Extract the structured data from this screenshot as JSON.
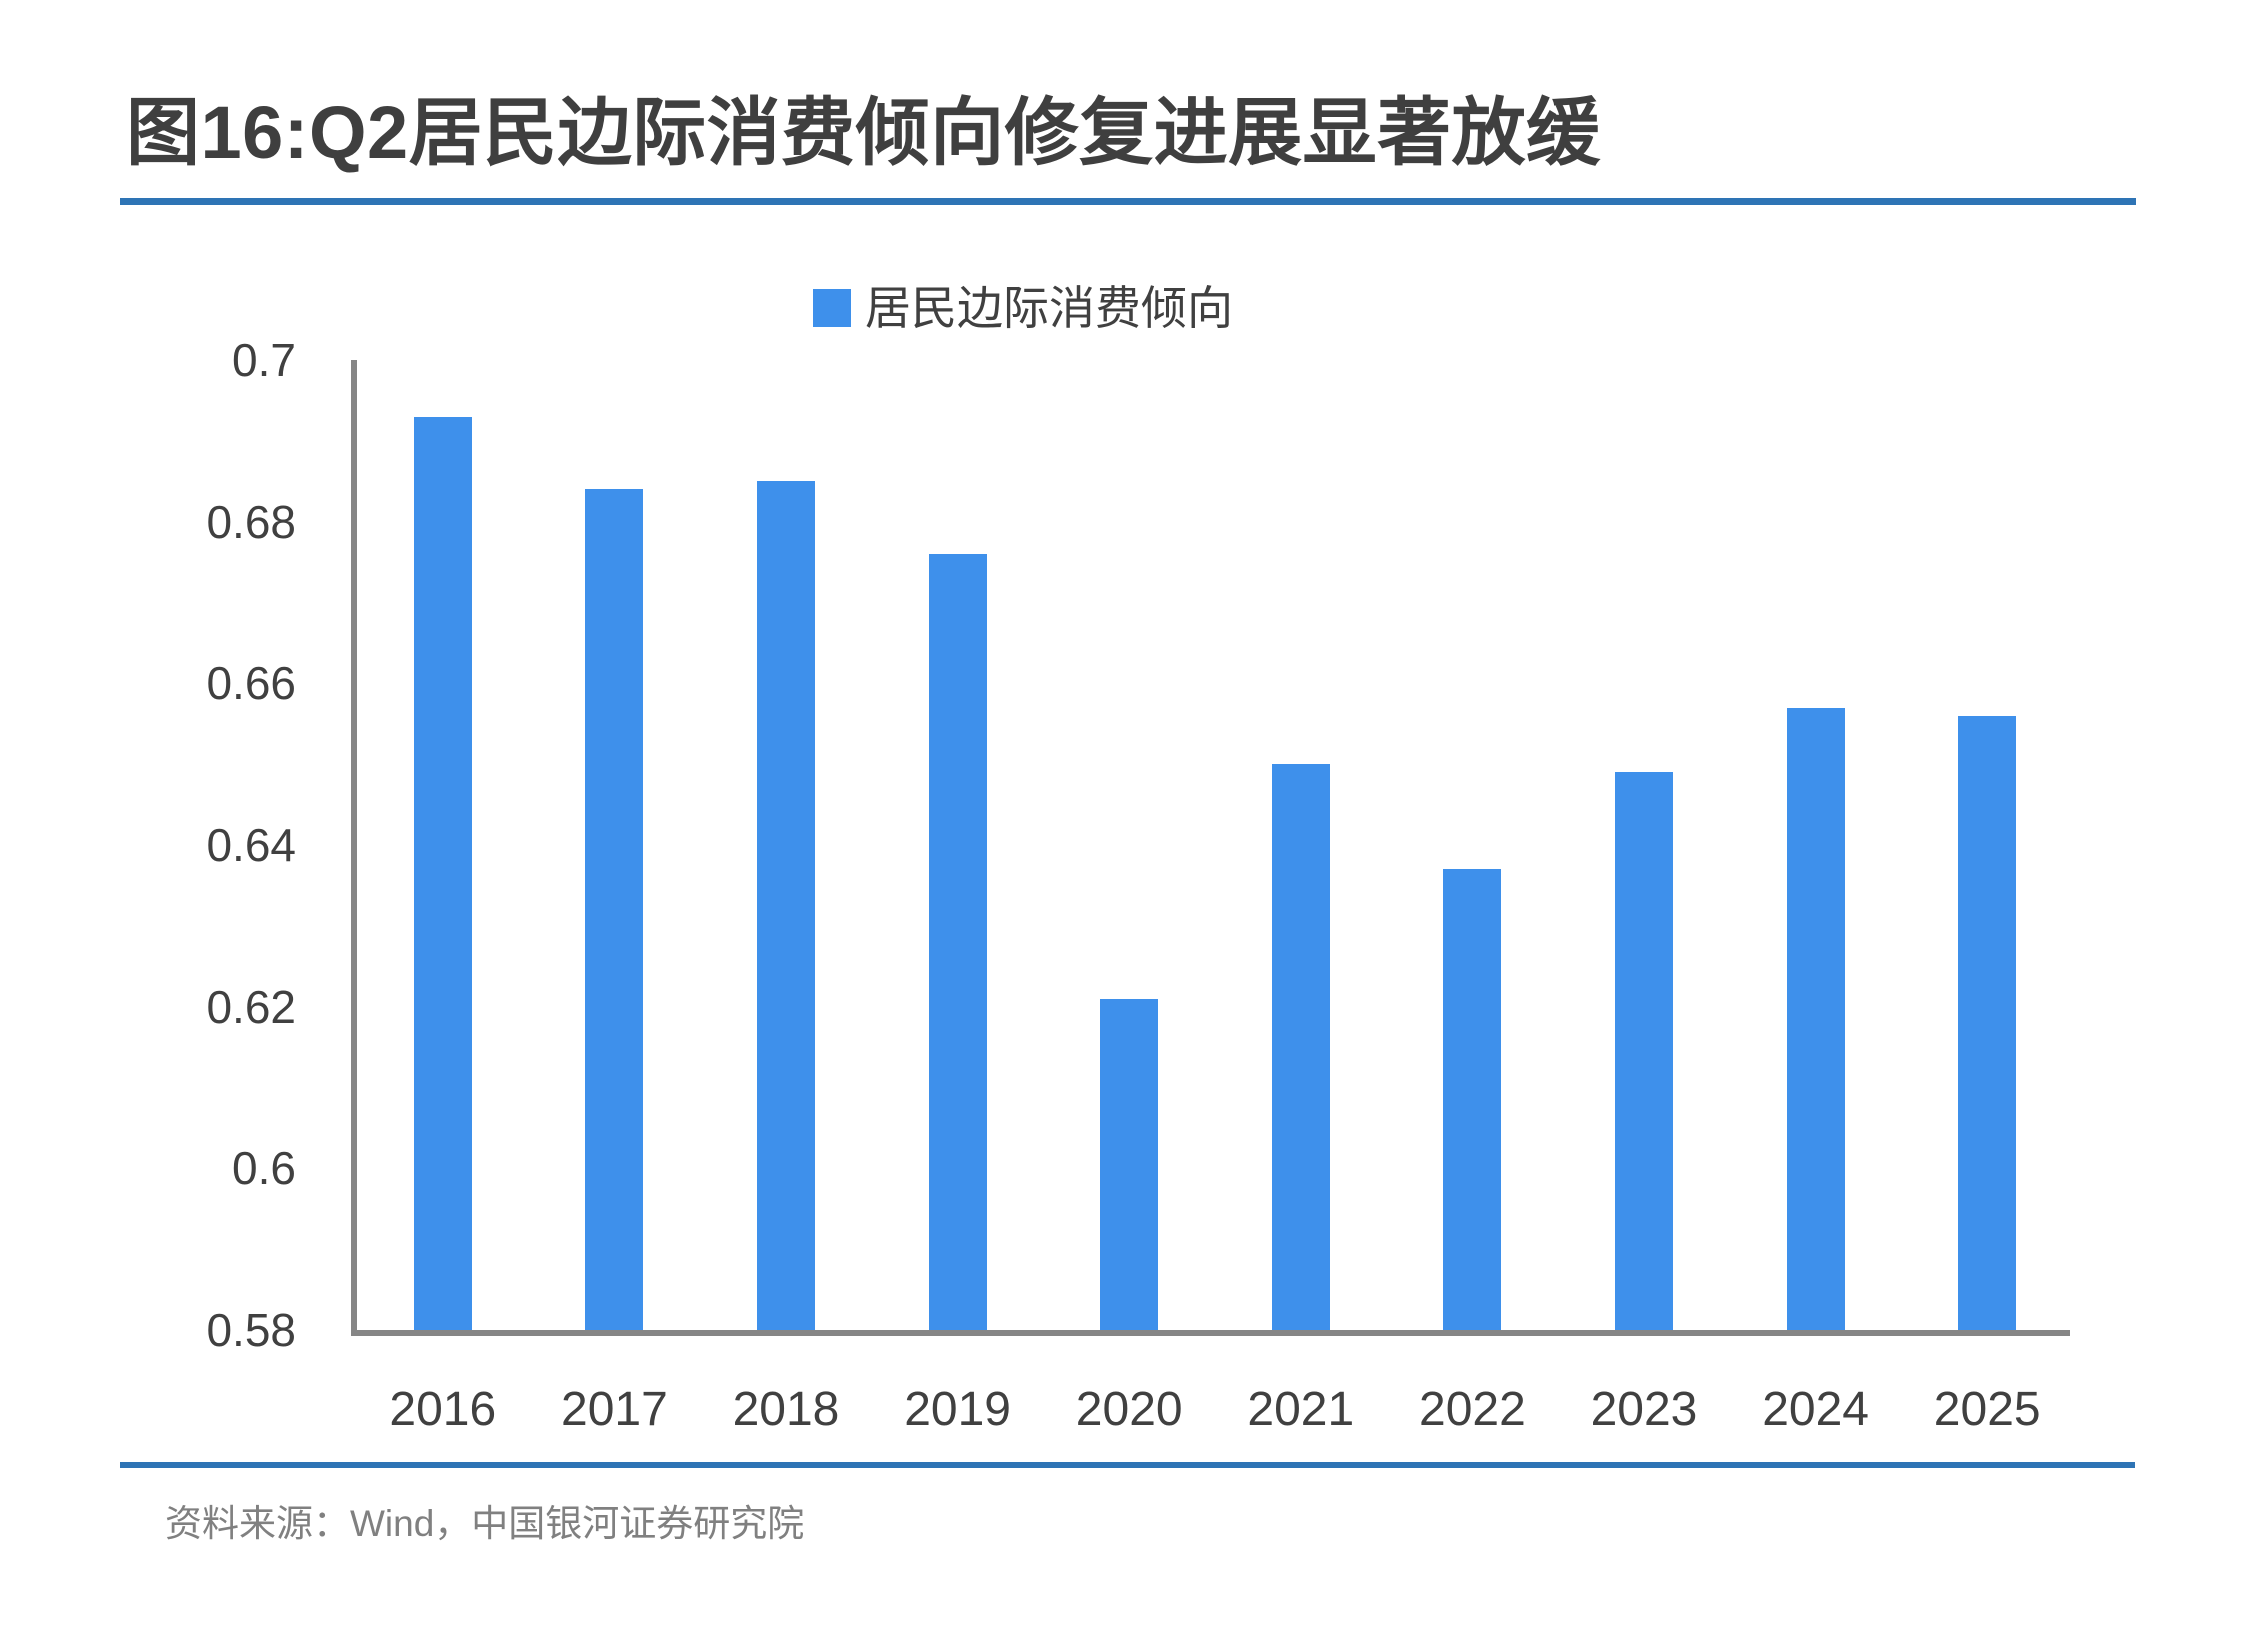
{
  "title": "图16:Q2居民边际消费倾向修复进展显著放缓",
  "legend": {
    "label": "居民边际消费倾向"
  },
  "source": "资料来源：Wind，中国银河证券研究院",
  "colors": {
    "bar": "#3E90EB",
    "rule": "#2E74B5",
    "axis": "#868686",
    "tick_text": "#404040",
    "title_text": "#3F3F3F",
    "source_text": "#808080"
  },
  "chart_data": {
    "type": "bar",
    "title": "图16:Q2居民边际消费倾向修复进展显著放缓",
    "series_name": "居民边际消费倾向",
    "categories": [
      "2016",
      "2017",
      "2018",
      "2019",
      "2020",
      "2021",
      "2022",
      "2023",
      "2024",
      "2025"
    ],
    "values": [
      0.693,
      0.684,
      0.685,
      0.676,
      0.621,
      0.65,
      0.637,
      0.649,
      0.657,
      0.656
    ],
    "xlabel": "",
    "ylabel": "",
    "ylim": [
      0.58,
      0.7
    ],
    "ytick_labels": [
      "0.7",
      "0.68",
      "0.66",
      "0.64",
      "0.62",
      "0.6",
      "0.58"
    ],
    "yticks": [
      0.7,
      0.68,
      0.66,
      0.64,
      0.62,
      0.6,
      0.58
    ],
    "grid": false,
    "legend_position": "top-center"
  }
}
